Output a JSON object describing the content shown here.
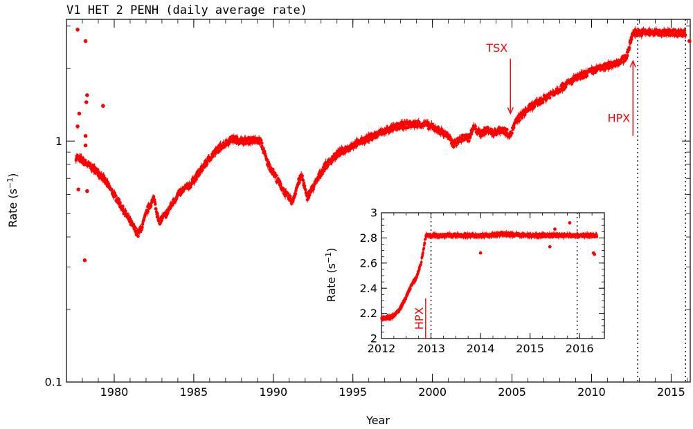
{
  "chart_data": [
    {
      "type": "scatter",
      "title": "V1 HET 2 PENH (daily average rate)",
      "xlabel": "Year",
      "ylabel_main": "Rate (s",
      "ylabel_sup": "−1",
      "ylabel_close": ")",
      "xlim": [
        1977.0,
        2016.2
      ],
      "ylim": [
        0.1,
        3.2
      ],
      "yscale": "log",
      "x_ticks": [
        1980,
        1985,
        1990,
        1995,
        2000,
        2005,
        2010,
        2015
      ],
      "y_ticks": [
        0.1,
        1
      ],
      "y_tick_labels": [
        "0.1",
        "1"
      ],
      "marker_color": "#ff0000",
      "trend": {
        "x": [
          1977.6,
          1977.9,
          1978.3,
          1978.8,
          1979.2,
          1979.7,
          1980.2,
          1980.7,
          1981.2,
          1981.5,
          1981.8,
          1982.1,
          1982.5,
          1982.8,
          1983.3,
          1984.0,
          1984.8,
          1985.4,
          1986.0,
          1986.7,
          1987.4,
          1988.1,
          1988.7,
          1989.2,
          1989.6,
          1989.9,
          1990.3,
          1990.8,
          1991.2,
          1991.6,
          1991.8,
          1992.1,
          1992.6,
          1993.2,
          1994.0,
          1995.0,
          1996.0,
          1997.0,
          1998.0,
          1999.0,
          1999.6,
          2000.3,
          2000.9,
          2001.3,
          2001.6,
          2002.0,
          2002.3,
          2002.6,
          2003.0,
          2003.5,
          2003.8,
          2004.4,
          2004.9,
          2005.3,
          2006.0,
          2007.0,
          2008.0,
          2009.0,
          2010.0,
          2011.0,
          2011.6,
          2012.0,
          2012.2,
          2012.4,
          2012.6,
          2013.0,
          2014.0,
          2015.0,
          2015.9
        ],
        "y": [
          0.86,
          0.84,
          0.8,
          0.76,
          0.72,
          0.64,
          0.57,
          0.5,
          0.44,
          0.41,
          0.45,
          0.52,
          0.58,
          0.46,
          0.5,
          0.6,
          0.66,
          0.75,
          0.85,
          0.95,
          1.02,
          1.0,
          1.01,
          1.0,
          0.82,
          0.76,
          0.68,
          0.6,
          0.56,
          0.68,
          0.72,
          0.58,
          0.66,
          0.78,
          0.88,
          0.96,
          1.03,
          1.1,
          1.16,
          1.18,
          1.17,
          1.12,
          1.06,
          0.97,
          1.0,
          1.04,
          1.03,
          1.14,
          1.07,
          1.12,
          1.08,
          1.12,
          1.06,
          1.22,
          1.36,
          1.5,
          1.65,
          1.82,
          1.95,
          2.05,
          2.12,
          2.18,
          2.25,
          2.5,
          2.82,
          2.82,
          2.82,
          2.82,
          2.81
        ]
      },
      "outliers": {
        "x": [
          1977.7,
          1978.2,
          1977.8,
          1978.3,
          1978.25,
          1977.7,
          1978.2,
          1978.2,
          1979.3,
          1978.15,
          1978.3,
          1977.75,
          2016.15
        ],
        "y": [
          2.9,
          2.6,
          1.3,
          1.55,
          1.45,
          1.15,
          1.05,
          0.96,
          1.4,
          0.32,
          0.62,
          0.63,
          2.6
        ]
      },
      "vlines_x": [
        2012.9,
        2015.9
      ],
      "annotations": [
        {
          "label": "TSX",
          "x": 2004.9,
          "y_text": 2.35,
          "y_arrow_start": 2.2,
          "y_arrow_end": 1.3,
          "direction": "down"
        },
        {
          "label": "HPX",
          "x": 2012.6,
          "y_text": 1.2,
          "y_arrow_start": 1.05,
          "y_arrow_end": 2.15,
          "direction": "up"
        }
      ]
    },
    {
      "type": "scatter",
      "title": "",
      "xlabel": "",
      "ylabel_main": "Rate (s",
      "ylabel_sup": "−1",
      "ylabel_close": ")",
      "xlim": [
        2012.0,
        2016.5
      ],
      "ylim": [
        2.0,
        3.0
      ],
      "x_ticks": [
        2012,
        2013,
        2014,
        2015,
        2016
      ],
      "y_ticks": [
        2.0,
        2.2,
        2.4,
        2.6,
        2.8,
        3.0
      ],
      "y_tick_labels": [
        "2",
        "2.2",
        "2.4",
        "2.6",
        "2.8",
        "3"
      ],
      "marker_color": "#ff0000",
      "trend": {
        "x": [
          2012.0,
          2012.2,
          2012.35,
          2012.5,
          2012.6,
          2012.7,
          2012.8,
          2012.9,
          2013.0,
          2013.5,
          2014.0,
          2014.5,
          2015.0,
          2015.5,
          2016.0,
          2016.35
        ],
        "y": [
          2.16,
          2.17,
          2.22,
          2.33,
          2.42,
          2.48,
          2.6,
          2.82,
          2.82,
          2.82,
          2.82,
          2.83,
          2.82,
          2.82,
          2.82,
          2.82
        ]
      },
      "outliers": {
        "x": [
          2014.0,
          2015.4,
          2015.8,
          2016.3,
          2016.28,
          2015.5
        ],
        "y": [
          2.68,
          2.73,
          2.92,
          2.67,
          2.68,
          2.87
        ]
      },
      "vlines_x": [
        2013.0,
        2015.95
      ],
      "annotations": [
        {
          "label": "HPX",
          "x": 2012.78,
          "y_text": 2.07,
          "y_arrow_start": 2.0,
          "y_arrow_end": 2.32,
          "direction": "vertical-text"
        }
      ]
    }
  ]
}
